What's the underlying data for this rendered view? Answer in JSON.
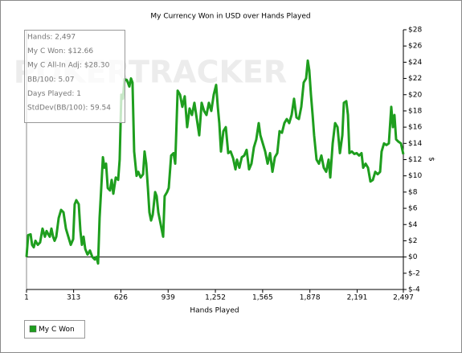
{
  "chart_data": {
    "type": "line",
    "title": "My Currency Won in USD over Hands Played",
    "x_label": "Hands Played",
    "y_label": "$",
    "watermark": "POKERTRACKER",
    "stats": [
      "Hands: 2,497",
      "My C Won: $12.66",
      "My C All-In Adj: $28.30",
      "BB/100: 5.07",
      "Days Played: 1",
      "StdDev(BB/100): 59.54"
    ],
    "xlim": [
      1,
      2497
    ],
    "xticks": [
      1,
      313,
      626,
      939,
      {
        "value": 1252,
        "label": "1,252"
      },
      {
        "value": 1565,
        "label": "1,565"
      },
      {
        "value": 1878,
        "label": "1,878"
      },
      {
        "value": 2191,
        "label": "2,191"
      },
      {
        "value": 2497,
        "label": "2,497"
      }
    ],
    "ylim": [
      -4,
      28
    ],
    "yticks": [
      {
        "value": -4,
        "label": "$-4"
      },
      {
        "value": -2,
        "label": "$-2"
      },
      {
        "value": 0,
        "label": "$0"
      },
      {
        "value": 2,
        "label": "$2"
      },
      {
        "value": 4,
        "label": "$4"
      },
      {
        "value": 6,
        "label": "$6"
      },
      {
        "value": 8,
        "label": "$8"
      },
      {
        "value": 10,
        "label": "$10"
      },
      {
        "value": 12,
        "label": "$12"
      },
      {
        "value": 14,
        "label": "$14"
      },
      {
        "value": 16,
        "label": "$16"
      },
      {
        "value": 18,
        "label": "$18"
      },
      {
        "value": 20,
        "label": "$20"
      },
      {
        "value": 22,
        "label": "$22"
      },
      {
        "value": 24,
        "label": "$24"
      },
      {
        "value": 26,
        "label": "$26"
      },
      {
        "value": 28,
        "label": "$28"
      }
    ],
    "x": [
      1,
      12,
      28,
      38,
      49,
      60,
      76,
      91,
      107,
      123,
      134,
      145,
      155,
      166,
      177,
      187,
      198,
      214,
      230,
      246,
      262,
      278,
      294,
      310,
      320,
      331,
      347,
      358,
      368,
      379,
      390,
      405,
      421,
      437,
      453,
      464,
      475,
      485,
      496,
      507,
      517,
      528,
      539,
      554,
      565,
      576,
      592,
      608,
      618,
      629,
      640,
      650,
      666,
      682,
      693,
      703,
      714,
      730,
      741,
      757,
      773,
      783,
      794,
      805,
      815,
      826,
      837,
      853,
      863,
      874,
      890,
      906,
      916,
      932,
      943,
      959,
      975,
      986,
      1002,
      1018,
      1033,
      1049,
      1065,
      1081,
      1097,
      1113,
      1129,
      1145,
      1161,
      1177,
      1193,
      1209,
      1225,
      1241,
      1257,
      1268,
      1278,
      1289,
      1305,
      1321,
      1337,
      1353,
      1369,
      1385,
      1395,
      1411,
      1427,
      1443,
      1459,
      1475,
      1491,
      1507,
      1523,
      1539,
      1550,
      1566,
      1582,
      1598,
      1614,
      1630,
      1646,
      1662,
      1677,
      1693,
      1709,
      1725,
      1741,
      1757,
      1773,
      1789,
      1805,
      1821,
      1837,
      1853,
      1864,
      1874,
      1885,
      1896,
      1906,
      1922,
      1938,
      1954,
      1970,
      1986,
      2002,
      2013,
      2029,
      2045,
      2061,
      2077,
      2093,
      2103,
      2119,
      2130,
      2140,
      2156,
      2172,
      2188,
      2204,
      2220,
      2231,
      2247,
      2263,
      2279,
      2295,
      2311,
      2327,
      2343,
      2353,
      2369,
      2385,
      2401,
      2417,
      2428,
      2438,
      2449,
      2465,
      2481,
      2497
    ],
    "series": [
      {
        "name": "My C Won",
        "color": "#1e9e1e",
        "values": [
          0,
          2.7,
          2.8,
          1.5,
          1.2,
          2.0,
          1.5,
          1.8,
          3.5,
          2.5,
          3.2,
          2.8,
          2.5,
          3.5,
          2.5,
          2.0,
          2.5,
          4.8,
          5.8,
          5.5,
          3.5,
          2.5,
          1.5,
          2.2,
          6.5,
          7.0,
          6.5,
          3.2,
          1.5,
          2.5,
          1.0,
          0.3,
          0.8,
          0.0,
          -0.3,
          0.0,
          -0.8,
          4.8,
          8.5,
          12.3,
          11.0,
          11.5,
          8.5,
          8.2,
          9.5,
          7.8,
          9.8,
          9.5,
          12.0,
          20.0,
          19.5,
          21.9,
          21.8,
          21.0,
          22.0,
          21.5,
          13.0,
          10.0,
          10.5,
          9.8,
          10.2,
          13.0,
          11.5,
          8.5,
          5.5,
          4.5,
          5.2,
          8.0,
          7.5,
          5.5,
          4.0,
          2.5,
          7.5,
          8.0,
          8.5,
          12.5,
          12.8,
          11.5,
          20.5,
          20.0,
          18.5,
          19.8,
          16.0,
          18.3,
          17.5,
          19.0,
          17.0,
          15.0,
          19.0,
          18.0,
          17.5,
          19.0,
          18.0,
          20.0,
          21.2,
          18.5,
          16.5,
          13.0,
          15.5,
          16.0,
          12.8,
          13.0,
          12.2,
          10.8,
          12.0,
          11.0,
          12.3,
          12.5,
          13.2,
          10.8,
          11.5,
          13.5,
          14.5,
          16.5,
          15.0,
          14.0,
          13.0,
          11.5,
          12.8,
          10.5,
          12.3,
          12.8,
          15.5,
          15.3,
          16.5,
          17.0,
          16.5,
          17.5,
          19.5,
          17.2,
          17.0,
          18.5,
          21.5,
          22.0,
          24.2,
          23.0,
          20.0,
          17.5,
          15.0,
          12.0,
          11.5,
          12.5,
          11.0,
          10.5,
          12.0,
          9.8,
          14.0,
          16.5,
          16.0,
          12.8,
          15.0,
          19.0,
          19.2,
          17.5,
          12.8,
          13.0,
          12.7,
          12.8,
          12.5,
          12.8,
          11.0,
          11.5,
          11.0,
          9.3,
          9.5,
          10.5,
          10.2,
          10.5,
          13.0,
          14.0,
          13.8,
          14.0,
          18.5,
          16.0,
          17.5,
          14.5,
          14.2,
          14.0,
          12.66
        ]
      }
    ]
  }
}
